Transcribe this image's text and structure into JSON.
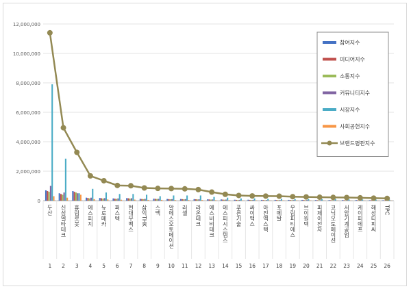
{
  "chart_data": {
    "type": "bar",
    "title": "",
    "xlabel": "",
    "ylabel": "",
    "ylim": [
      0,
      12000000
    ],
    "yticks": [
      0,
      2000000,
      4000000,
      6000000,
      8000000,
      10000000,
      12000000
    ],
    "ytick_labels": [
      "0",
      "2,000,000",
      "4,000,000",
      "6,000,000",
      "8,000,000",
      "10,000,000",
      "12,000,000"
    ],
    "grid": true,
    "legend_position": "top-right",
    "categories": [
      "두산",
      "신성델타테크",
      "휴림로봇",
      "에스피지",
      "뉴로메카",
      "퍼스텍",
      "현대무벡스",
      "삼익THK",
      "스맥",
      "알에스오토메이션",
      "러셀",
      "라온테크",
      "에스비비테크",
      "에스피시스템스",
      "푸른기술",
      "싸이맥스",
      "아진엑스텍",
      "포메탈",
      "우림피티에스",
      "브이원텍",
      "피제이전자",
      "코닉오토메이션",
      "서암기계공업",
      "케이피에프",
      "해성티피씨",
      "TPC"
    ],
    "numbers": [
      "1",
      "2",
      "3",
      "4",
      "5",
      "6",
      "7",
      "8",
      "9",
      "10",
      "11",
      "12",
      "13",
      "14",
      "15",
      "16",
      "17",
      "18",
      "19",
      "20",
      "21",
      "22",
      "23",
      "24",
      "25",
      "26"
    ],
    "series": [
      {
        "name": "참여지수",
        "kind": "bar",
        "color": "#4472c4",
        "values": [
          700000,
          500000,
          650000,
          200000,
          180000,
          150000,
          170000,
          120000,
          130000,
          110000,
          110000,
          100000,
          90000,
          80000,
          60000,
          60000,
          50000,
          50000,
          50000,
          50000,
          40000,
          40000,
          40000,
          40000,
          30000,
          30000
        ]
      },
      {
        "name": "미디어지수",
        "kind": "bar",
        "color": "#c0504d",
        "values": [
          650000,
          450000,
          600000,
          180000,
          160000,
          130000,
          160000,
          110000,
          120000,
          100000,
          100000,
          90000,
          80000,
          70000,
          50000,
          50000,
          40000,
          40000,
          40000,
          40000,
          30000,
          30000,
          30000,
          30000,
          30000,
          20000
        ]
      },
      {
        "name": "소통지수",
        "kind": "bar",
        "color": "#9bbb59",
        "values": [
          600000,
          400000,
          550000,
          150000,
          140000,
          120000,
          140000,
          100000,
          110000,
          90000,
          90000,
          80000,
          70000,
          60000,
          40000,
          40000,
          30000,
          30000,
          30000,
          30000,
          30000,
          30000,
          20000,
          20000,
          20000,
          20000
        ]
      },
      {
        "name": "커뮤니티지수",
        "kind": "bar",
        "color": "#8064a2",
        "values": [
          1000000,
          550000,
          500000,
          200000,
          170000,
          150000,
          160000,
          120000,
          120000,
          100000,
          100000,
          90000,
          80000,
          70000,
          50000,
          50000,
          40000,
          40000,
          40000,
          40000,
          30000,
          30000,
          30000,
          30000,
          30000,
          20000
        ]
      },
      {
        "name": "시장지수",
        "kind": "bar",
        "color": "#4bacc6",
        "values": [
          7900000,
          2850000,
          500000,
          800000,
          550000,
          450000,
          450000,
          400000,
          300000,
          350000,
          350000,
          350000,
          250000,
          200000,
          150000,
          150000,
          120000,
          120000,
          100000,
          100000,
          100000,
          100000,
          80000,
          80000,
          70000,
          60000
        ]
      },
      {
        "name": "사회공헌지수",
        "kind": "bar",
        "color": "#f79646",
        "values": [
          300000,
          200000,
          400000,
          100000,
          80000,
          60000,
          70000,
          50000,
          50000,
          40000,
          40000,
          40000,
          30000,
          30000,
          20000,
          20000,
          20000,
          20000,
          20000,
          20000,
          10000,
          10000,
          10000,
          10000,
          10000,
          10000
        ]
      },
      {
        "name": "브랜드평판지수",
        "kind": "line",
        "color": "#938953",
        "values": [
          11400000,
          4950000,
          3280000,
          1680000,
          1350000,
          1030000,
          1010000,
          860000,
          830000,
          820000,
          800000,
          750000,
          580000,
          430000,
          350000,
          320000,
          310000,
          300000,
          270000,
          250000,
          230000,
          220000,
          210000,
          190000,
          170000,
          150000
        ]
      }
    ]
  }
}
